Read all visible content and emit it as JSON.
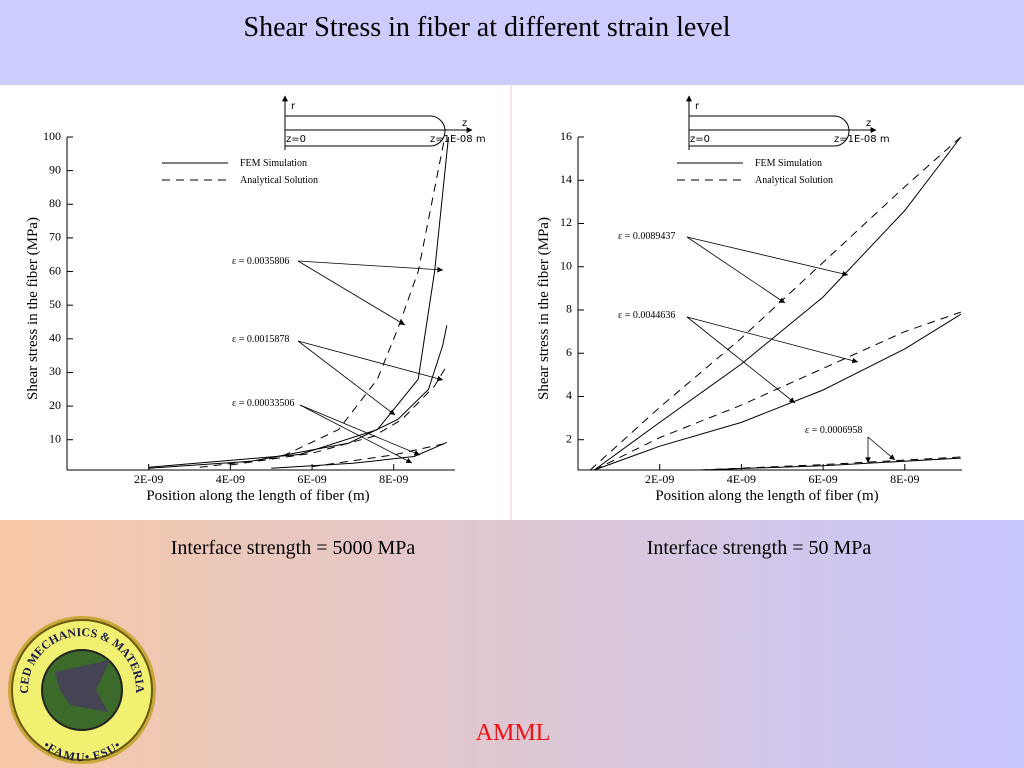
{
  "slide_title": "Shear Stress in fiber at different strain level",
  "captions": [
    "Interface strength = 5000 MPa",
    "Interface strength = 50 MPa"
  ],
  "footer": "AMML",
  "logo": {
    "ring_text": "ADVANCED MECHANICS & MATERIALS LAB",
    "bottom_text": "•FAMU• FSU•"
  },
  "chart_data": [
    {
      "type": "line",
      "xlabel": "Position along the length of fiber (m)",
      "ylabel": "Shear stress in the fiber (MPa)",
      "xlim": [
        0,
        9.5e-09
      ],
      "ylim": [
        1,
        100
      ],
      "xticks": [
        {
          "value": 2e-09,
          "label": "2E-09"
        },
        {
          "value": 4e-09,
          "label": "4E-09"
        },
        {
          "value": 6e-09,
          "label": "6E-09"
        },
        {
          "value": 8e-09,
          "label": "8E-09"
        }
      ],
      "yticks": [
        10,
        20,
        30,
        40,
        50,
        60,
        70,
        80,
        90,
        100
      ],
      "legend": [
        {
          "label": "FEM Simulation",
          "dash": false
        },
        {
          "label": "Analytical Solution",
          "dash": true
        }
      ],
      "inset": {
        "r": "r",
        "z": "z",
        "z0": "z=0",
        "zend": "z=1E-08 m"
      },
      "annotations": [
        "ε = 0.0035806",
        "ε = 0.0015878",
        "ε = 0.00033506"
      ],
      "color": "#000000",
      "series": [
        {
          "dash": false,
          "x": [
            2e-09,
            5.7e-09,
            7.6e-09,
            8.6e-09,
            9e-09,
            9.34e-09
          ],
          "values": [
            1.8,
            5.6,
            13,
            28,
            60,
            100
          ]
        },
        {
          "dash": true,
          "x": [
            3.25e-09,
            5.2e-09,
            6.65e-09,
            7.6e-09,
            8.1e-09,
            8.6e-09,
            9.25e-09
          ],
          "values": [
            1.8,
            4.7,
            13,
            28,
            43,
            60,
            100
          ]
        },
        {
          "dash": false,
          "x": [
            2e-09,
            4.5e-09,
            6.9e-09,
            8.1e-09,
            8.85e-09,
            9.2e-09,
            9.3e-09
          ],
          "values": [
            1.5,
            3.6,
            9,
            16,
            25,
            38,
            44
          ]
        },
        {
          "dash": true,
          "x": [
            4e-09,
            6e-09,
            7.5e-09,
            8.2e-09,
            9e-09,
            9.3e-09
          ],
          "values": [
            2.5,
            6,
            11,
            16,
            26,
            32
          ]
        },
        {
          "dash": false,
          "x": [
            5e-09,
            7e-09,
            8.5e-09,
            9.3e-09
          ],
          "values": [
            1.5,
            3,
            5,
            9.2
          ]
        },
        {
          "dash": true,
          "x": [
            6e-09,
            8e-09,
            9.3e-09
          ],
          "values": [
            2,
            5.5,
            9
          ]
        }
      ]
    },
    {
      "type": "line",
      "xlabel": "Position along the length of fiber (m)",
      "ylabel": "Shear stress in the fiber (MPa)",
      "xlim": [
        0,
        9.4e-09
      ],
      "ylim": [
        0.6,
        16
      ],
      "xticks": [
        {
          "value": 2e-09,
          "label": "2E-09"
        },
        {
          "value": 4e-09,
          "label": "4E-09"
        },
        {
          "value": 6e-09,
          "label": "6E-09"
        },
        {
          "value": 8e-09,
          "label": "8E-09"
        }
      ],
      "yticks": [
        2,
        4,
        6,
        8,
        10,
        12,
        14,
        16
      ],
      "legend": [
        {
          "label": "FEM Simulation",
          "dash": false
        },
        {
          "label": "Analytical Solution",
          "dash": true
        }
      ],
      "inset": {
        "r": "r",
        "z": "z",
        "z0": "z=0",
        "zend": "z=1E-08 m"
      },
      "annotations": [
        "ε = 0.0089437",
        "ε = 0.0044636",
        "ε = 0.0006958"
      ],
      "color": "#000000",
      "series": [
        {
          "dash": false,
          "x": [
            4e-10,
            2e-09,
            4e-09,
            6e-09,
            8e-09,
            9.37e-09
          ],
          "values": [
            0.6,
            2.8,
            5.5,
            8.6,
            12.6,
            16
          ]
        },
        {
          "dash": true,
          "x": [
            3e-10,
            2e-09,
            4e-09,
            6e-09,
            8e-09,
            9.37e-09
          ],
          "values": [
            0.6,
            3.5,
            6.7,
            10.2,
            13.7,
            16
          ]
        },
        {
          "dash": false,
          "x": [
            4e-10,
            2e-09,
            4e-09,
            6e-09,
            8e-09,
            9.37e-09
          ],
          "values": [
            0.6,
            1.7,
            2.8,
            4.3,
            6.2,
            7.8
          ]
        },
        {
          "dash": true,
          "x": [
            4e-10,
            2e-09,
            4e-09,
            6e-09,
            8e-09,
            9.37e-09
          ],
          "values": [
            0.6,
            2.1,
            3.6,
            5.3,
            7,
            7.9
          ]
        },
        {
          "dash": false,
          "x": [
            3e-09,
            6e-09,
            9.37e-09
          ],
          "values": [
            0.6,
            0.8,
            1.15
          ]
        },
        {
          "dash": true,
          "x": [
            3e-09,
            6e-09,
            9.37e-09
          ],
          "values": [
            0.6,
            0.85,
            1.2
          ]
        }
      ]
    }
  ]
}
